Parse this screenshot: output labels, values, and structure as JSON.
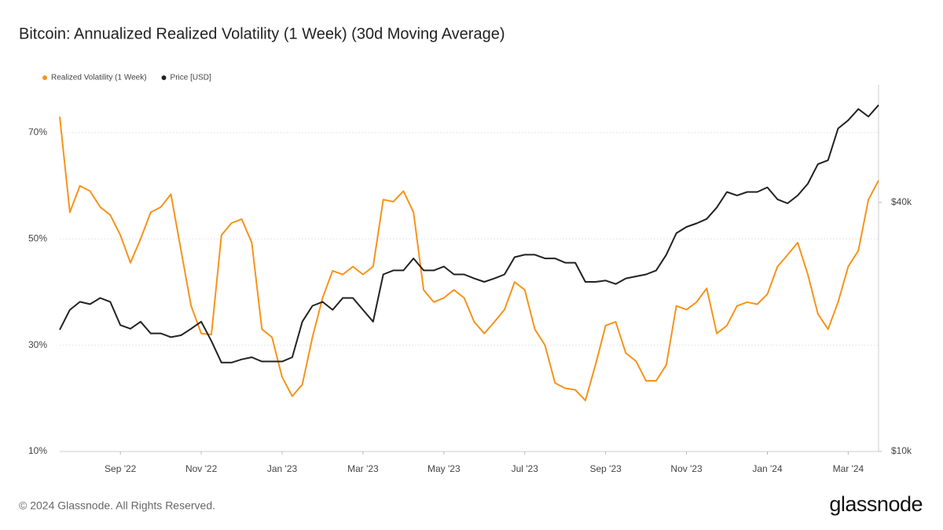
{
  "chart_data": {
    "type": "line",
    "title": "Bitcoin: Annualized Realized Volatility (1 Week) (30d Moving Average)",
    "categories": [
      null,
      null,
      null,
      null,
      null,
      null,
      "Sep '22",
      null,
      null,
      null,
      null,
      null,
      null,
      null,
      "Nov '22",
      null,
      null,
      null,
      null,
      null,
      null,
      null,
      "Jan '23",
      null,
      null,
      null,
      null,
      null,
      null,
      null,
      "Mar '23",
      null,
      null,
      null,
      null,
      null,
      null,
      null,
      "May '23",
      null,
      null,
      null,
      null,
      null,
      null,
      null,
      "Jul '23",
      null,
      null,
      null,
      null,
      null,
      null,
      null,
      "Sep '23",
      null,
      null,
      null,
      null,
      null,
      null,
      null,
      "Nov '23",
      null,
      null,
      null,
      null,
      null,
      null,
      null,
      "Jan '24",
      null,
      null,
      null,
      null,
      null,
      null,
      null,
      "Mar '24",
      null,
      null,
      null
    ],
    "series": [
      {
        "name": "Realized Volatility (1 Week)",
        "color": "#f7931a",
        "values": [
          73,
          55,
          60,
          59,
          56,
          54.5,
          50.7,
          45.5,
          50,
          55,
          56,
          58.4,
          47.8,
          37.4,
          32.2,
          32,
          50.7,
          53,
          53.7,
          49.3,
          33,
          31.5,
          24,
          20.4,
          22.6,
          31.5,
          38.9,
          44,
          43.3,
          44.8,
          43.3,
          44.8,
          57.4,
          57,
          59,
          55,
          40.4,
          38.1,
          38.9,
          40.4,
          38.9,
          34.4,
          32.2,
          34.4,
          36.7,
          41.9,
          40.4,
          33,
          30,
          22.9,
          21.9,
          21.6,
          19.6,
          26.3,
          33.7,
          34.4,
          28.5,
          27,
          23.3,
          23.3,
          26.3,
          37.4,
          36.7,
          38.1,
          40.7,
          32.2,
          33.7,
          37.4,
          38.1,
          37.7,
          39.6,
          44.8,
          47,
          49.3,
          43.3,
          35.9,
          33,
          38.1,
          44.8,
          47.8,
          57.4,
          61
        ]
      },
      {
        "name": "Price [USD]",
        "color": "#222222",
        "axis": "y2",
        "values": [
          19700,
          22000,
          23000,
          22700,
          23500,
          23000,
          20200,
          19800,
          20600,
          19300,
          19300,
          18900,
          19100,
          19800,
          20600,
          18500,
          16400,
          16400,
          16700,
          16900,
          16500,
          16500,
          16500,
          16900,
          20600,
          22500,
          23000,
          22000,
          23500,
          23500,
          22000,
          20600,
          26800,
          27400,
          27400,
          29300,
          27400,
          27400,
          28000,
          26800,
          26800,
          26200,
          25700,
          26200,
          26800,
          29500,
          29900,
          29900,
          29300,
          29300,
          28600,
          28600,
          25700,
          25700,
          25900,
          25400,
          26200,
          26500,
          26800,
          27400,
          29900,
          33700,
          34900,
          35600,
          36500,
          38900,
          42400,
          41600,
          42400,
          42400,
          43500,
          40700,
          39800,
          41600,
          44400,
          49500,
          50600,
          60400,
          63200,
          67300,
          64500,
          68800
        ]
      }
    ],
    "ylim": [
      10,
      79
    ],
    "yticks": [
      {
        "value": 10,
        "label": "10%"
      },
      {
        "value": 30,
        "label": "30%"
      },
      {
        "value": 50,
        "label": "50%"
      },
      {
        "value": 70,
        "label": "70%"
      }
    ],
    "y2lim": [
      10000,
      77000
    ],
    "y2ticks": [
      {
        "value": 10000,
        "label": "$10k"
      },
      {
        "value": 40000,
        "label": "$40k"
      }
    ],
    "y2_log": true,
    "grid": true,
    "legend": "top-left"
  },
  "footer": {
    "copyright": "© 2024 Glassnode. All Rights Reserved.",
    "logo": "glassnode"
  }
}
